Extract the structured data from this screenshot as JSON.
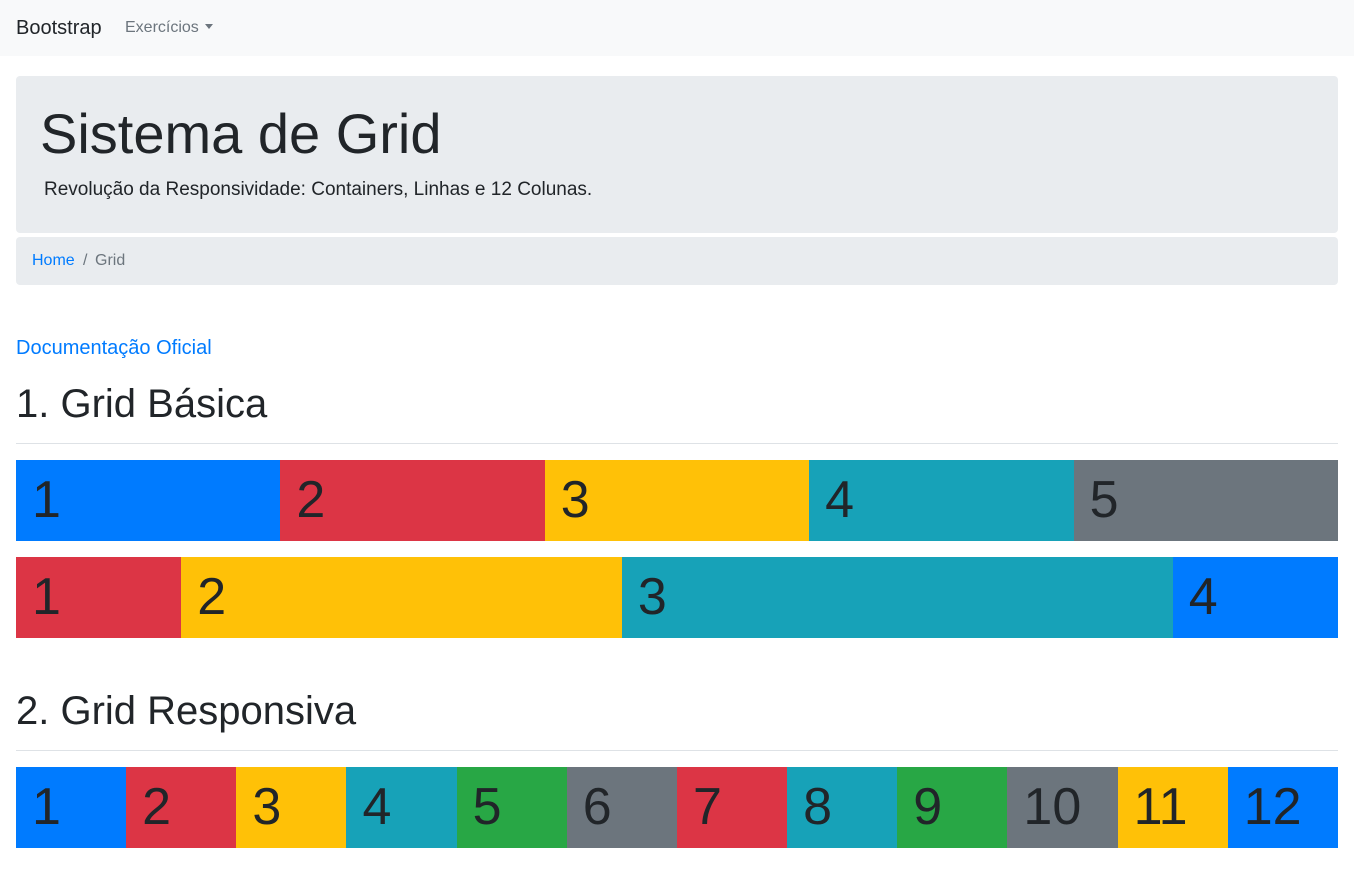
{
  "navbar": {
    "brand": "Bootstrap",
    "dropdown_label": "Exercícios"
  },
  "jumbotron": {
    "title": "Sistema de Grid",
    "lead": "Revolução da Responsividade: Containers, Linhas e 12 Colunas."
  },
  "breadcrumb": {
    "home": "Home",
    "separator": "/",
    "active": "Grid"
  },
  "doc_link": "Documentação Oficial",
  "section1": {
    "title": "1. Grid Básica",
    "row1": [
      {
        "label": "1",
        "color": "#007bff"
      },
      {
        "label": "2",
        "color": "#dc3545"
      },
      {
        "label": "3",
        "color": "#ffc107"
      },
      {
        "label": "4",
        "color": "#17a2b8"
      },
      {
        "label": "5",
        "color": "#6c757d"
      }
    ],
    "row2": [
      {
        "label": "1",
        "color": "#dc3545",
        "span": 3
      },
      {
        "label": "2",
        "color": "#ffc107",
        "span": 8
      },
      {
        "label": "3",
        "color": "#17a2b8",
        "span": 10
      },
      {
        "label": "4",
        "color": "#007bff",
        "span": 3
      }
    ]
  },
  "section2": {
    "title": "2. Grid Responsiva",
    "row": [
      {
        "label": "1",
        "color": "#007bff"
      },
      {
        "label": "2",
        "color": "#dc3545"
      },
      {
        "label": "3",
        "color": "#ffc107"
      },
      {
        "label": "4",
        "color": "#17a2b8"
      },
      {
        "label": "5",
        "color": "#28a745"
      },
      {
        "label": "6",
        "color": "#6c757d"
      },
      {
        "label": "7",
        "color": "#dc3545"
      },
      {
        "label": "8",
        "color": "#17a2b8"
      },
      {
        "label": "9",
        "color": "#28a745"
      },
      {
        "label": "10",
        "color": "#6c757d"
      },
      {
        "label": "11",
        "color": "#ffc107"
      },
      {
        "label": "12",
        "color": "#007bff"
      }
    ]
  }
}
